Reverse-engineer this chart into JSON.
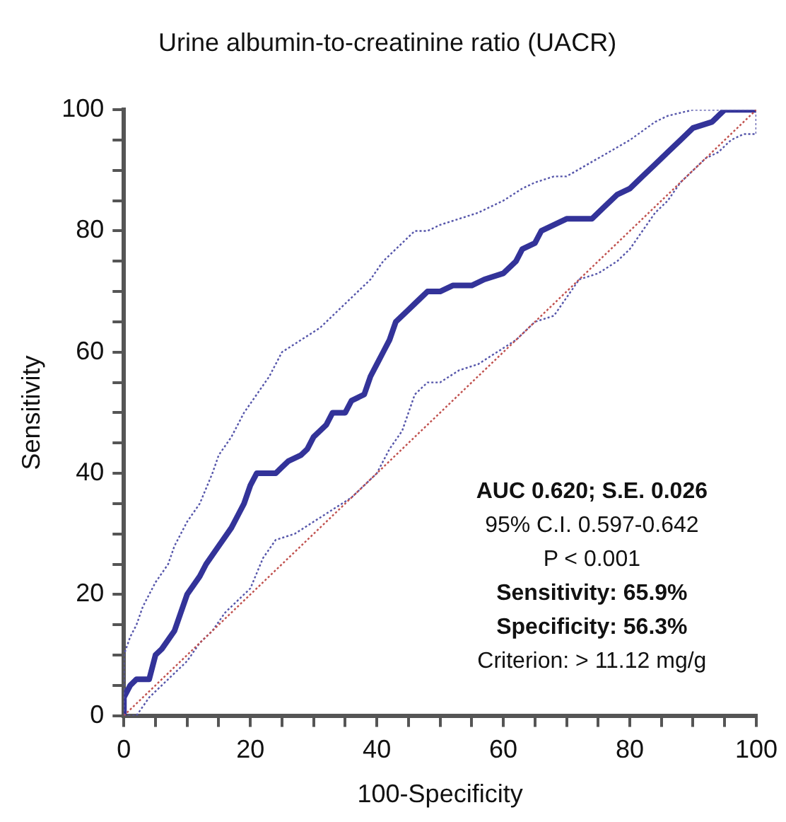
{
  "chart_data": {
    "type": "line",
    "title": "Urine albumin-to-creatinine ratio (UACR)",
    "xlabel": "100-Specificity",
    "ylabel": "Sensitivity",
    "xlim": [
      0,
      100
    ],
    "ylim": [
      0,
      100
    ],
    "xticks": [
      0,
      {
        "value": 5,
        "label": null
      },
      {
        "value": 10,
        "label": null
      },
      {
        "value": 15,
        "label": null
      },
      20,
      {
        "value": 25,
        "label": null
      },
      {
        "value": 30,
        "label": null
      },
      {
        "value": 35,
        "label": null
      },
      40,
      {
        "value": 45,
        "label": null
      },
      {
        "value": 50,
        "label": null
      },
      {
        "value": 55,
        "label": null
      },
      60,
      {
        "value": 65,
        "label": null
      },
      {
        "value": 70,
        "label": null
      },
      {
        "value": 75,
        "label": null
      },
      80,
      {
        "value": 85,
        "label": null
      },
      {
        "value": 90,
        "label": null
      },
      {
        "value": 95,
        "label": null
      },
      100
    ],
    "yticks": [
      0,
      {
        "value": 5,
        "label": null
      },
      {
        "value": 10,
        "label": null
      },
      {
        "value": 15,
        "label": null
      },
      20,
      {
        "value": 25,
        "label": null
      },
      {
        "value": 30,
        "label": null
      },
      {
        "value": 35,
        "label": null
      },
      40,
      {
        "value": 45,
        "label": null
      },
      {
        "value": 50,
        "label": null
      },
      {
        "value": 55,
        "label": null
      },
      60,
      {
        "value": 65,
        "label": null
      },
      {
        "value": 70,
        "label": null
      },
      {
        "value": 75,
        "label": null
      },
      80,
      {
        "value": 85,
        "label": null
      },
      {
        "value": 90,
        "label": null
      },
      {
        "value": 95,
        "label": null
      },
      100
    ],
    "grid": false,
    "legend": false,
    "marker": "none",
    "series": [
      {
        "color": "#c0504d",
        "line_style": "dotted",
        "x": [
          0,
          100
        ],
        "values": [
          0,
          100
        ]
      },
      {
        "color": "#5555aa",
        "line_style": "dotted",
        "x": [
          0,
          0,
          1,
          2,
          3,
          5,
          7,
          8,
          10,
          12,
          14,
          15,
          17,
          19,
          21,
          23,
          25,
          28,
          31,
          33,
          35,
          37,
          39,
          41,
          43,
          44,
          46,
          48,
          50,
          53,
          56,
          58,
          60,
          63,
          65,
          68,
          70,
          75,
          80,
          84,
          86,
          90,
          100
        ],
        "values": [
          0,
          10,
          13,
          15,
          18,
          22,
          25,
          28,
          32,
          35,
          40,
          43,
          46,
          50,
          53,
          56,
          60,
          62,
          64,
          66,
          68,
          70,
          72,
          75,
          77,
          78,
          80,
          80,
          81,
          82,
          83,
          84,
          85,
          87,
          88,
          89,
          89,
          92,
          95,
          98,
          99,
          100,
          100
        ]
      },
      {
        "color": "#5555aa",
        "line_style": "dotted",
        "x": [
          0,
          2,
          4,
          6,
          8,
          10,
          12,
          14,
          16,
          18,
          20,
          22,
          24,
          27,
          30,
          33,
          36,
          38,
          40,
          42,
          44,
          46,
          48,
          50,
          53,
          56,
          59,
          62,
          65,
          68,
          70,
          72,
          75,
          78,
          80,
          82,
          84,
          86,
          88,
          90,
          92,
          94,
          96,
          98,
          100,
          100
        ],
        "values": [
          0,
          0,
          3,
          5,
          7,
          9,
          12,
          14,
          17,
          19,
          21,
          26,
          29,
          30,
          32,
          34,
          36,
          38,
          40,
          44,
          47,
          53,
          55,
          55,
          57,
          58,
          60,
          62,
          65,
          66,
          69,
          72,
          73,
          75,
          77,
          80,
          83,
          85,
          88,
          90,
          92,
          93,
          95,
          96,
          96,
          100
        ]
      },
      {
        "color": "#333399",
        "line_style": "solid",
        "x": [
          0,
          0,
          1,
          2,
          4,
          5,
          6,
          8,
          9,
          10,
          12,
          13,
          15,
          17,
          18,
          19,
          20,
          21,
          24,
          25,
          26,
          28,
          29,
          30,
          32,
          33,
          35,
          36,
          38,
          39,
          40,
          41,
          42,
          43,
          44,
          45,
          46,
          48,
          50,
          52,
          55,
          57,
          60,
          62,
          63,
          65,
          66,
          68,
          70,
          74,
          76,
          78,
          80,
          82,
          84,
          86,
          88,
          90,
          93,
          95,
          100
        ],
        "values": [
          0,
          3,
          5,
          6,
          6,
          10,
          11,
          14,
          17,
          20,
          23,
          25,
          28,
          31,
          33,
          35,
          38,
          40,
          40,
          41,
          42,
          43,
          44,
          46,
          48,
          50,
          50,
          52,
          53,
          56,
          58,
          60,
          62,
          65,
          66,
          67,
          68,
          70,
          70,
          71,
          71,
          72,
          73,
          75,
          77,
          78,
          80,
          81,
          82,
          82,
          84,
          86,
          87,
          89,
          91,
          93,
          95,
          97,
          98,
          100,
          100
        ]
      }
    ],
    "annotations": [
      "AUC 0.620; S.E. 0.026",
      "95% C.I. 0.597-0.642",
      "P < 0.001",
      "Sensitivity: 65.9%",
      "Specificity: 56.3%",
      "Criterion: > 11.12 mg/g"
    ]
  }
}
